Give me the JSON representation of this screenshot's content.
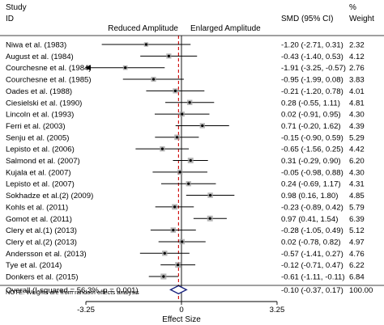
{
  "chart_data": {
    "type": "forest",
    "headers": {
      "study_line1": "Study",
      "study_line2": "ID",
      "effect": "SMD (95% CI)",
      "weight_line1": "%",
      "weight_line2": "Weight"
    },
    "direction_labels": {
      "left": "Reduced Amplitude",
      "right": "Enlarged Amplitude"
    },
    "studies": [
      {
        "id": "Niwa et al. (1983)",
        "smd": -1.2,
        "lo": -2.71,
        "hi": 0.31,
        "ci_text": "-1.20 (-2.71, 0.31)",
        "weight": "2.32"
      },
      {
        "id": "August et al. (1984)",
        "smd": -0.43,
        "lo": -1.4,
        "hi": 0.53,
        "ci_text": "-0.43 (-1.40, 0.53)",
        "weight": "4.12"
      },
      {
        "id": "Courchesne et al. (1984)",
        "smd": -1.91,
        "lo": -3.25,
        "hi": -0.57,
        "ci_text": "-1.91 (-3.25, -0.57)",
        "weight": "2.76",
        "arrow_left": true
      },
      {
        "id": "Courchesne et al. (1985)",
        "smd": -0.95,
        "lo": -1.99,
        "hi": 0.08,
        "ci_text": "-0.95 (-1.99, 0.08)",
        "weight": "3.83"
      },
      {
        "id": "Oades et al. (1988)",
        "smd": -0.21,
        "lo": -1.2,
        "hi": 0.78,
        "ci_text": "-0.21 (-1.20, 0.78)",
        "weight": "4.01"
      },
      {
        "id": "Ciesielski et al. (1990)",
        "smd": 0.28,
        "lo": -0.55,
        "hi": 1.11,
        "ci_text": "0.28 (-0.55, 1.11)",
        "weight": "4.81"
      },
      {
        "id": "Lincoln et al. (1993)",
        "smd": 0.02,
        "lo": -0.91,
        "hi": 0.95,
        "ci_text": "0.02 (-0.91, 0.95)",
        "weight": "4.30"
      },
      {
        "id": "Ferri et al. (2003)",
        "smd": 0.71,
        "lo": -0.2,
        "hi": 1.62,
        "ci_text": "0.71 (-0.20, 1.62)",
        "weight": "4.39"
      },
      {
        "id": "Senju et al. (2005)",
        "smd": -0.15,
        "lo": -0.9,
        "hi": 0.59,
        "ci_text": "-0.15 (-0.90, 0.59)",
        "weight": "5.29"
      },
      {
        "id": "Lepisto et al. (2006)",
        "smd": -0.65,
        "lo": -1.56,
        "hi": 0.25,
        "ci_text": "-0.65 (-1.56, 0.25)",
        "weight": "4.42"
      },
      {
        "id": "Salmond et al. (2007)",
        "smd": 0.31,
        "lo": -0.29,
        "hi": 0.9,
        "ci_text": "0.31 (-0.29, 0.90)",
        "weight": "6.20"
      },
      {
        "id": "Kujala et al. (2007)",
        "smd": -0.05,
        "lo": -0.98,
        "hi": 0.88,
        "ci_text": "-0.05 (-0.98, 0.88)",
        "weight": "4.30"
      },
      {
        "id": "Lepisto et al. (2007)",
        "smd": 0.24,
        "lo": -0.69,
        "hi": 1.17,
        "ci_text": "0.24 (-0.69, 1.17)",
        "weight": "4.31"
      },
      {
        "id": "Sokhadze et al.(2) (2009)",
        "smd": 0.98,
        "lo": 0.16,
        "hi": 1.8,
        "ci_text": "0.98 (0.16, 1.80)",
        "weight": "4.85"
      },
      {
        "id": "Kohls et al. (2011)",
        "smd": -0.23,
        "lo": -0.89,
        "hi": 0.42,
        "ci_text": "-0.23 (-0.89, 0.42)",
        "weight": "5.79"
      },
      {
        "id": "Gomot et al. (2011)",
        "smd": 0.97,
        "lo": 0.41,
        "hi": 1.54,
        "ci_text": "0.97 (0.41, 1.54)",
        "weight": "6.39"
      },
      {
        "id": "Clery et al.(1) (2013)",
        "smd": -0.28,
        "lo": -1.05,
        "hi": 0.49,
        "ci_text": "-0.28 (-1.05, 0.49)",
        "weight": "5.12"
      },
      {
        "id": "Clery et al.(2) (2013)",
        "smd": 0.02,
        "lo": -0.78,
        "hi": 0.82,
        "ci_text": "0.02 (-0.78, 0.82)",
        "weight": "4.97"
      },
      {
        "id": "Andersson et al. (2013)",
        "smd": -0.57,
        "lo": -1.41,
        "hi": 0.27,
        "ci_text": "-0.57 (-1.41, 0.27)",
        "weight": "4.76"
      },
      {
        "id": "Tye et al. (2014)",
        "smd": -0.12,
        "lo": -0.71,
        "hi": 0.47,
        "ci_text": "-0.12 (-0.71, 0.47)",
        "weight": "6.22"
      },
      {
        "id": "Donkers et al. (2015)",
        "smd": -0.61,
        "lo": -1.11,
        "hi": -0.11,
        "ci_text": "-0.61 (-1.11, -0.11)",
        "weight": "6.84"
      }
    ],
    "overall": {
      "label": "Overall  (I-squared = 56.3%, p = 0.001)",
      "smd": -0.1,
      "lo": -0.37,
      "hi": 0.17,
      "ci_text": "-0.10 (-0.37, 0.17)",
      "weight": "100.00"
    },
    "note": "NOTE: Weights are from random effects analysis",
    "x_axis": {
      "label": "Effect Size",
      "ticks": [
        -3.25,
        0,
        3.25
      ],
      "tick_labels": [
        "-3.25",
        "0",
        "3.25"
      ],
      "range": [
        -3.25,
        3.25
      ]
    },
    "colors": {
      "reference_line": "#cc0000",
      "overall_diamond": "#1a237e",
      "box_fill": "#9e9e9e",
      "ci_line": "#000000"
    }
  }
}
